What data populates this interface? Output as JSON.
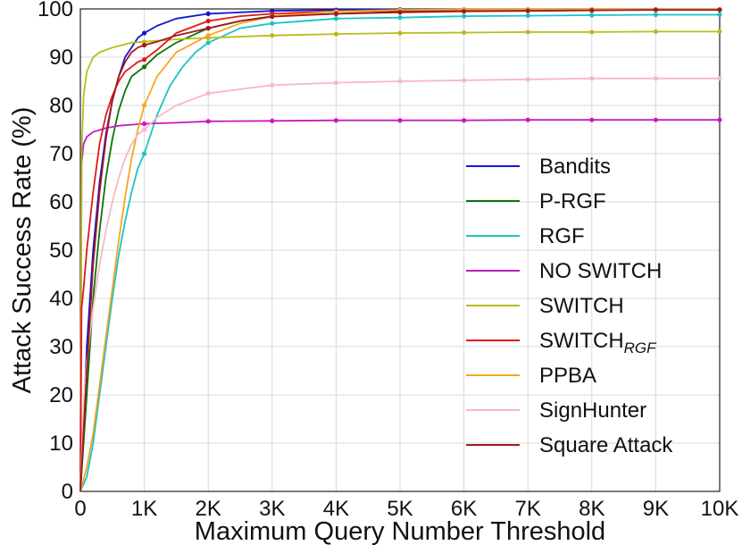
{
  "chart_data": {
    "type": "line",
    "xlabel": "Maximum Query Number Threshold",
    "ylabel": "Attack Success Rate (%)",
    "xlim": [
      0,
      10000
    ],
    "ylim": [
      0,
      100
    ],
    "x_ticks": [
      0,
      1000,
      2000,
      3000,
      4000,
      5000,
      6000,
      7000,
      8000,
      9000,
      10000
    ],
    "x_tick_labels": [
      "0",
      "1K",
      "2K",
      "3K",
      "4K",
      "5K",
      "6K",
      "7K",
      "8K",
      "9K",
      "10K"
    ],
    "y_ticks": [
      0,
      10,
      20,
      30,
      40,
      50,
      60,
      70,
      80,
      90,
      100
    ],
    "y_tick_labels": [
      "0",
      "10",
      "20",
      "30",
      "40",
      "50",
      "60",
      "70",
      "80",
      "90",
      "100"
    ],
    "grid": true,
    "legend_position": "center-right",
    "series": [
      {
        "name": "Bandits",
        "color": "#1515d6",
        "points": [
          [
            0,
            0
          ],
          [
            100,
            30
          ],
          [
            200,
            50
          ],
          [
            300,
            64
          ],
          [
            400,
            74
          ],
          [
            500,
            81
          ],
          [
            600,
            86
          ],
          [
            700,
            90
          ],
          [
            800,
            92
          ],
          [
            900,
            94
          ],
          [
            1000,
            95
          ],
          [
            1200,
            96.5
          ],
          [
            1500,
            98
          ],
          [
            2000,
            99
          ],
          [
            3000,
            99.6
          ],
          [
            4000,
            99.8
          ],
          [
            5000,
            99.9
          ],
          [
            6000,
            99.9
          ],
          [
            7000,
            99.9
          ],
          [
            8000,
            99.9
          ],
          [
            9000,
            99.9
          ],
          [
            10000,
            99.9
          ]
        ]
      },
      {
        "name": "P-RGF",
        "color": "#0b740b",
        "points": [
          [
            0,
            0
          ],
          [
            100,
            20
          ],
          [
            200,
            40
          ],
          [
            300,
            54
          ],
          [
            400,
            65
          ],
          [
            500,
            73
          ],
          [
            600,
            79
          ],
          [
            700,
            83
          ],
          [
            800,
            86
          ],
          [
            900,
            87
          ],
          [
            1000,
            88
          ],
          [
            1200,
            90.5
          ],
          [
            1500,
            93
          ],
          [
            2000,
            96
          ],
          [
            2500,
            97.5
          ],
          [
            3000,
            98.5
          ],
          [
            4000,
            99
          ],
          [
            5000,
            99.4
          ],
          [
            6000,
            99.6
          ],
          [
            7000,
            99.7
          ],
          [
            8000,
            99.8
          ],
          [
            9000,
            99.9
          ],
          [
            10000,
            99.9
          ]
        ]
      },
      {
        "name": "RGF",
        "color": "#1bc4c4",
        "points": [
          [
            0,
            0
          ],
          [
            100,
            3
          ],
          [
            200,
            10
          ],
          [
            300,
            20
          ],
          [
            400,
            30
          ],
          [
            500,
            40
          ],
          [
            600,
            49
          ],
          [
            700,
            56
          ],
          [
            800,
            62
          ],
          [
            900,
            67
          ],
          [
            1000,
            70
          ],
          [
            1200,
            78
          ],
          [
            1400,
            84
          ],
          [
            1600,
            88
          ],
          [
            1800,
            91
          ],
          [
            2000,
            93
          ],
          [
            2500,
            96
          ],
          [
            3000,
            97
          ],
          [
            4000,
            98
          ],
          [
            5000,
            98.2
          ],
          [
            6000,
            98.5
          ],
          [
            7000,
            98.6
          ],
          [
            8000,
            98.7
          ],
          [
            9000,
            98.8
          ],
          [
            10000,
            98.8
          ]
        ]
      },
      {
        "name": "NO SWITCH",
        "color": "#c21bc4",
        "points": [
          [
            0,
            0
          ],
          [
            20,
            68
          ],
          [
            50,
            72
          ],
          [
            100,
            73.5
          ],
          [
            200,
            74.5
          ],
          [
            400,
            75.3
          ],
          [
            600,
            75.8
          ],
          [
            800,
            76
          ],
          [
            1000,
            76.2
          ],
          [
            1500,
            76.4
          ],
          [
            2000,
            76.7
          ],
          [
            3000,
            76.8
          ],
          [
            4000,
            76.9
          ],
          [
            5000,
            76.9
          ],
          [
            6000,
            76.9
          ],
          [
            7000,
            77
          ],
          [
            8000,
            77
          ],
          [
            9000,
            77
          ],
          [
            10000,
            77
          ]
        ]
      },
      {
        "name": "SWITCH",
        "color": "#b8bc1a",
        "points": [
          [
            0,
            0
          ],
          [
            20,
            70
          ],
          [
            50,
            82
          ],
          [
            100,
            87
          ],
          [
            200,
            90
          ],
          [
            300,
            91
          ],
          [
            500,
            92
          ],
          [
            800,
            93
          ],
          [
            1000,
            93.2
          ],
          [
            1500,
            93.7
          ],
          [
            2000,
            94
          ],
          [
            3000,
            94.5
          ],
          [
            4000,
            94.8
          ],
          [
            5000,
            95
          ],
          [
            6000,
            95.1
          ],
          [
            7000,
            95.2
          ],
          [
            8000,
            95.2
          ],
          [
            9000,
            95.3
          ],
          [
            10000,
            95.3
          ]
        ]
      },
      {
        "name": "SWITCH",
        "name_sub": "RGF",
        "color": "#e01717",
        "points": [
          [
            0,
            0
          ],
          [
            20,
            38
          ],
          [
            50,
            42
          ],
          [
            100,
            50
          ],
          [
            200,
            62
          ],
          [
            300,
            72
          ],
          [
            400,
            78
          ],
          [
            500,
            82
          ],
          [
            600,
            85
          ],
          [
            700,
            87
          ],
          [
            800,
            88
          ],
          [
            900,
            89
          ],
          [
            1000,
            89.5
          ],
          [
            1200,
            91.5
          ],
          [
            1500,
            95
          ],
          [
            2000,
            97.5
          ],
          [
            2500,
            98.5
          ],
          [
            3000,
            99
          ],
          [
            4000,
            99.5
          ],
          [
            5000,
            99.7
          ],
          [
            6000,
            99.8
          ],
          [
            7000,
            99.8
          ],
          [
            8000,
            99.9
          ],
          [
            9000,
            99.9
          ],
          [
            10000,
            99.9
          ]
        ]
      },
      {
        "name": "PPBA",
        "color": "#f5a623",
        "points": [
          [
            0,
            0
          ],
          [
            100,
            5
          ],
          [
            200,
            12
          ],
          [
            300,
            22
          ],
          [
            400,
            32
          ],
          [
            500,
            42
          ],
          [
            600,
            52
          ],
          [
            700,
            61
          ],
          [
            800,
            69
          ],
          [
            900,
            75
          ],
          [
            1000,
            80
          ],
          [
            1200,
            86
          ],
          [
            1500,
            91
          ],
          [
            2000,
            94.5
          ],
          [
            2500,
            97
          ],
          [
            3000,
            98.5
          ],
          [
            4000,
            99.5
          ],
          [
            5000,
            99.8
          ],
          [
            6000,
            99.9
          ],
          [
            7000,
            99.9
          ],
          [
            8000,
            99.9
          ],
          [
            9000,
            99.9
          ],
          [
            10000,
            99.9
          ]
        ]
      },
      {
        "name": "SignHunter",
        "color": "#f7b8c6",
        "points": [
          [
            0,
            0
          ],
          [
            50,
            18
          ],
          [
            100,
            27
          ],
          [
            200,
            38
          ],
          [
            300,
            47
          ],
          [
            400,
            54
          ],
          [
            500,
            60
          ],
          [
            600,
            65
          ],
          [
            700,
            69
          ],
          [
            800,
            72
          ],
          [
            900,
            74
          ],
          [
            1000,
            75
          ],
          [
            1200,
            77.5
          ],
          [
            1500,
            80
          ],
          [
            2000,
            82.5
          ],
          [
            3000,
            84.2
          ],
          [
            4000,
            84.7
          ],
          [
            5000,
            85
          ],
          [
            6000,
            85.2
          ],
          [
            7000,
            85.4
          ],
          [
            8000,
            85.6
          ],
          [
            9000,
            85.6
          ],
          [
            10000,
            85.6
          ]
        ]
      },
      {
        "name": "Square Attack",
        "color": "#a01a1a",
        "points": [
          [
            0,
            0
          ],
          [
            100,
            25
          ],
          [
            200,
            47
          ],
          [
            300,
            62
          ],
          [
            400,
            73
          ],
          [
            500,
            81
          ],
          [
            600,
            86
          ],
          [
            700,
            89
          ],
          [
            800,
            91
          ],
          [
            900,
            92
          ],
          [
            1000,
            92.5
          ],
          [
            1200,
            93.2
          ],
          [
            1500,
            94.5
          ],
          [
            2000,
            96
          ],
          [
            2500,
            97.5
          ],
          [
            3000,
            98.4
          ],
          [
            4000,
            99
          ],
          [
            5000,
            99.3
          ],
          [
            6000,
            99.5
          ],
          [
            7000,
            99.6
          ],
          [
            8000,
            99.7
          ],
          [
            9000,
            99.8
          ],
          [
            10000,
            99.8
          ]
        ]
      }
    ]
  }
}
